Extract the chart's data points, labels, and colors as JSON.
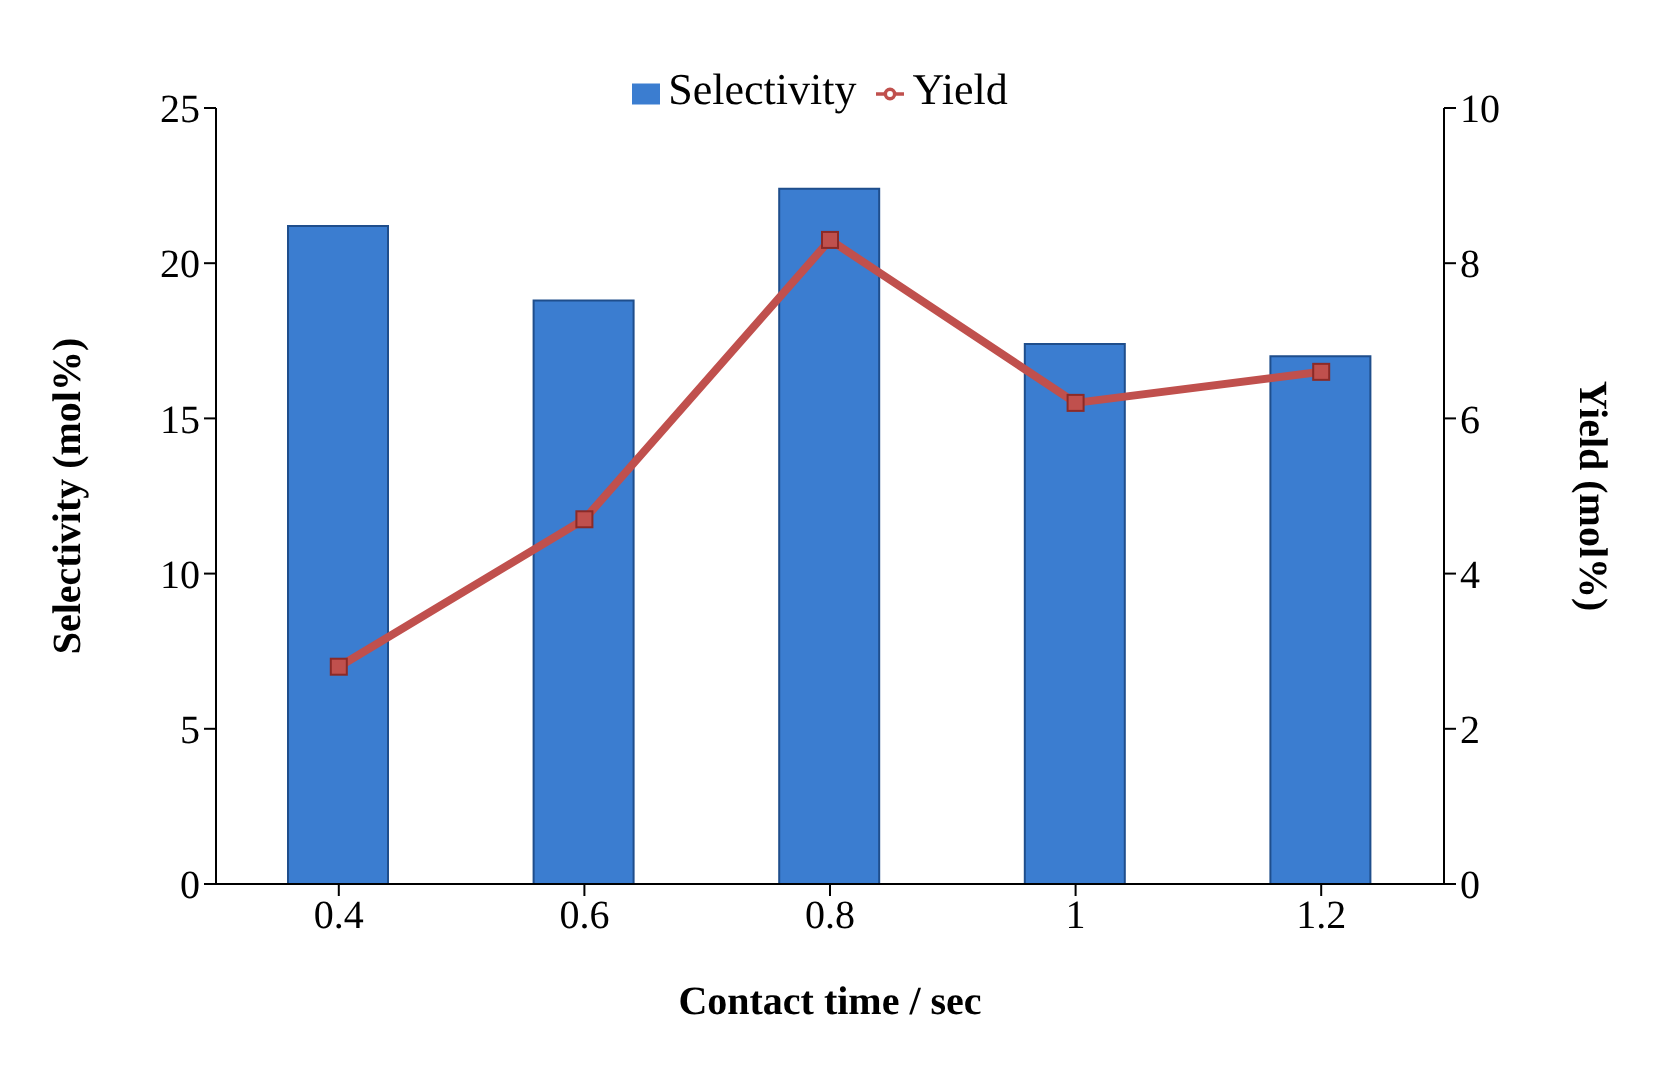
{
  "chart_data": {
    "type": "bar",
    "xlabel": "Contact time / sec",
    "ylabel": "Selectivity (mol%)",
    "y2label": "Yield (mol%)",
    "categories": [
      "0.4",
      "0.6",
      "0.8",
      "1",
      "1.2"
    ],
    "series": [
      {
        "name": "Selectivity",
        "color": "#3b7dd0",
        "values": [
          21.2,
          18.8,
          22.4,
          17.4,
          17.0
        ]
      },
      {
        "name": "Yield",
        "type": "line",
        "axis": "y2",
        "color": "#c0504d",
        "marker": "square",
        "values": [
          2.8,
          4.7,
          8.3,
          6.2,
          6.6
        ]
      }
    ],
    "ylim": [
      0,
      25
    ],
    "yticks": [
      0,
      5,
      10,
      15,
      20,
      25
    ],
    "y2lim": [
      0,
      10
    ],
    "y2ticks": [
      0,
      2,
      4,
      6,
      8,
      10
    ],
    "legend": "top"
  }
}
